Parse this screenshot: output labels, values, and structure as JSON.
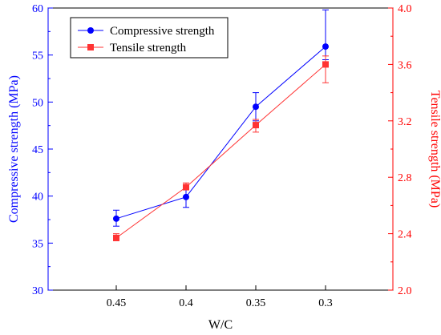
{
  "chart_data": {
    "type": "line",
    "xlabel": "W/C",
    "categories": [
      "0.45",
      "0.4",
      "0.35",
      "0.3"
    ],
    "y_left": {
      "label": "Compressive strength (MPa)",
      "ylim": [
        30,
        60
      ],
      "ticks": [
        "30",
        "35",
        "40",
        "45",
        "50",
        "55",
        "60"
      ],
      "color": "#0000ff"
    },
    "y_right": {
      "label": "Tensile strength (MPa)",
      "ylim": [
        2.0,
        4.0
      ],
      "ticks": [
        "2.0",
        "2.4",
        "2.8",
        "3.2",
        "3.6",
        "4.0"
      ],
      "color": "#ff0000"
    },
    "series": [
      {
        "name": "Compressive strength",
        "axis": "left",
        "marker": "circle",
        "color": "#0000ff",
        "values": [
          37.6,
          39.9,
          49.5,
          55.9
        ],
        "error_low": [
          36.8,
          38.8,
          48.0,
          54.5
        ],
        "error_high": [
          38.5,
          41.0,
          51.0,
          59.8
        ]
      },
      {
        "name": "Tensile strength",
        "axis": "right",
        "marker": "square",
        "color": "#ff3333",
        "values": [
          2.37,
          2.73,
          3.17,
          3.6
        ],
        "error_low": [
          2.35,
          2.71,
          3.12,
          3.47
        ],
        "error_high": [
          2.4,
          2.76,
          3.21,
          3.66
        ]
      }
    ],
    "legend": {
      "position": "top-left"
    },
    "grid": false
  }
}
